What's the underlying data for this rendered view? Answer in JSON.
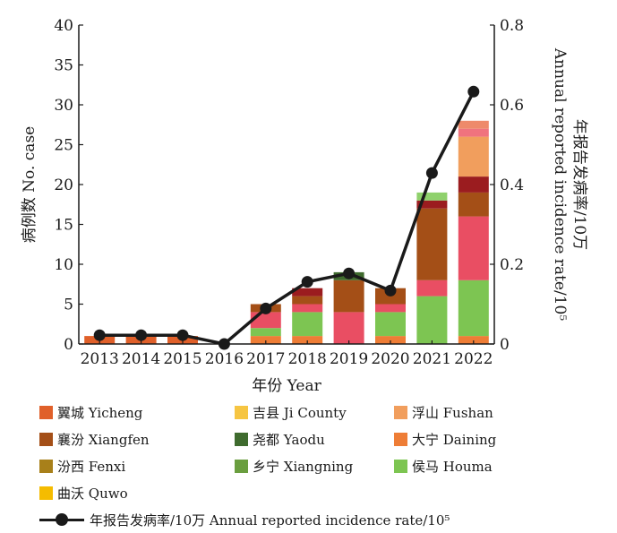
{
  "chart_data": {
    "type": "bar",
    "stacked": true,
    "categories": [
      "2013",
      "2014",
      "2015",
      "2016",
      "2017",
      "2018",
      "2019",
      "2020",
      "2021",
      "2022"
    ],
    "xlabel": "年份 Year",
    "ylabel": "病例数 No. case",
    "y2label": "年报告发病率/10万 Annual reported incidence rate/10⁵",
    "ylim": [
      0,
      40
    ],
    "y2lim": [
      0,
      0.8
    ],
    "yticks": [
      0,
      5,
      10,
      15,
      20,
      25,
      30,
      35,
      40
    ],
    "y2ticks": [
      "0",
      "0.2",
      "0.4",
      "0.6",
      "0.8"
    ],
    "series": [
      {
        "name": "翼城 Yicheng",
        "color": "#e0602a",
        "values": [
          1,
          1,
          1,
          0,
          0,
          0,
          0,
          0,
          0,
          0
        ]
      },
      {
        "name": "大宁 Daining",
        "color": "#ee7d36",
        "values": [
          0,
          0,
          0,
          0,
          1,
          1,
          0,
          1,
          0,
          1
        ]
      },
      {
        "name": "侯马 Houma",
        "color": "#7dc552",
        "values": [
          0,
          0,
          0,
          0,
          1,
          3,
          0,
          3,
          6,
          7
        ]
      },
      {
        "name": "吉县 Ji County",
        "color": "#f6c542",
        "values": [
          0,
          0,
          0,
          0,
          0,
          0,
          0,
          0,
          0,
          0
        ]
      },
      {
        "name": "汾西 Fenxi",
        "color": "#a8801a",
        "values": [
          0,
          0,
          0,
          0,
          0,
          0,
          0,
          0,
          0,
          0
        ]
      },
      {
        "name": "曲沃 Quwo",
        "color": "#f5bc00",
        "values": [
          0,
          0,
          0,
          0,
          0,
          0,
          0,
          0,
          0,
          0
        ]
      },
      {
        "name": "乡宁 Xiangning",
        "color": "#6a9e3f",
        "values": [
          0,
          0,
          0,
          0,
          0,
          0,
          0,
          0,
          0,
          0
        ]
      },
      {
        "name": "_pink",
        "color": "#e94e63",
        "values": [
          0,
          0,
          0,
          0,
          2,
          1,
          4,
          1,
          2,
          8
        ]
      },
      {
        "name": "襄汾 Xiangfen",
        "color": "#a44f17",
        "values": [
          0,
          0,
          0,
          0,
          1,
          1,
          4,
          2,
          9,
          3
        ]
      },
      {
        "name": "_darkred",
        "color": "#9b1c1f",
        "values": [
          0,
          0,
          0,
          0,
          0,
          1,
          0,
          0,
          1,
          2
        ]
      },
      {
        "name": "尧都 Yaodu",
        "color": "#3f6b2e",
        "values": [
          0,
          0,
          0,
          0,
          0,
          0,
          1,
          0,
          0,
          0
        ]
      },
      {
        "name": "浮山 Fushan",
        "color": "#f19e5d",
        "values": [
          0,
          0,
          0,
          0,
          0,
          0,
          0,
          0,
          0,
          5
        ]
      },
      {
        "name": "_lightpink",
        "color": "#f0737e",
        "values": [
          0,
          0,
          0,
          0,
          0,
          0,
          0,
          0,
          0,
          1
        ]
      },
      {
        "name": "_lightgreen",
        "color": "#8fd16c",
        "values": [
          0,
          0,
          0,
          0,
          0,
          0,
          0,
          0,
          1,
          0
        ]
      },
      {
        "name": "_salmon",
        "color": "#ee8a6a",
        "values": [
          0,
          0,
          0,
          0,
          0,
          0,
          0,
          0,
          0,
          1
        ]
      }
    ],
    "line": {
      "name": "年报告发病率/10万 Annual reported incidence rate/10⁵",
      "color": "#1a1a1a",
      "values": [
        0.022,
        0.022,
        0.022,
        0.0,
        0.089,
        0.156,
        0.177,
        0.134,
        0.429,
        0.633
      ]
    }
  },
  "legend": {
    "items": [
      {
        "label": "翼城 Yicheng",
        "color": "#e0602a"
      },
      {
        "label": "吉县 Ji County",
        "color": "#f6c542"
      },
      {
        "label": "浮山 Fushan",
        "color": "#f19e5d"
      },
      {
        "label": "襄汾 Xiangfen",
        "color": "#a44f17"
      },
      {
        "label": "尧都 Yaodu",
        "color": "#3f6b2e"
      },
      {
        "label": "大宁 Daining",
        "color": "#ee7d36"
      },
      {
        "label": "汾西 Fenxi",
        "color": "#a8801a"
      },
      {
        "label": "乡宁 Xiangning",
        "color": "#6a9e3f"
      },
      {
        "label": "侯马 Houma",
        "color": "#7dc552"
      },
      {
        "label": "曲沃 Quwo",
        "color": "#f5bc00"
      }
    ],
    "line_label": "年报告发病率/10万 Annual reported incidence rate/10⁵"
  }
}
